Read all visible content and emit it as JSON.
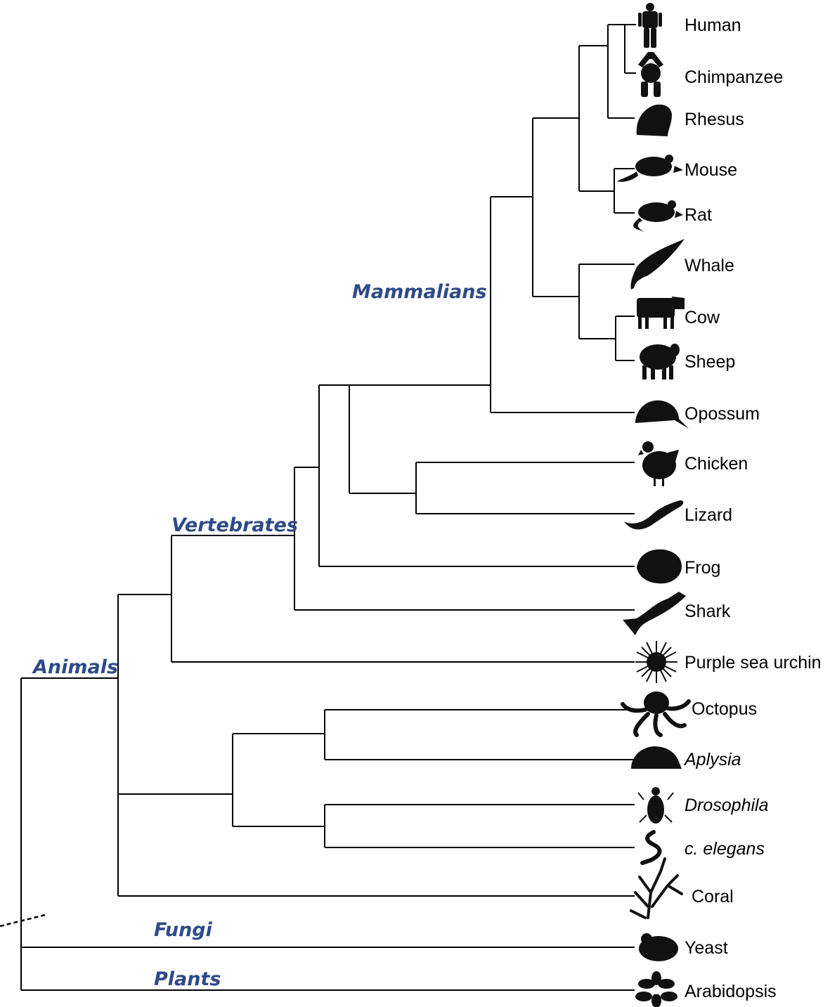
{
  "clades": {
    "mammalians": "Mammalians",
    "vertebrates": "Vertebrates",
    "animals": "Animals",
    "fungi": "Fungi",
    "plants": "Plants"
  },
  "taxa": {
    "human": "Human",
    "chimpanzee": "Chimpanzee",
    "rhesus": "Rhesus",
    "mouse": "Mouse",
    "rat": "Rat",
    "whale": "Whale",
    "cow": "Cow",
    "sheep": "Sheep",
    "opossum": "Opossum",
    "chicken": "Chicken",
    "lizard": "Lizard",
    "frog": "Frog",
    "shark": "Shark",
    "sea_urchin": "Purple sea urchin",
    "octopus": "Octopus",
    "aplysia": "Aplysia",
    "drosophila": "Drosophila",
    "c_elegans": "c. elegans",
    "coral": "Coral",
    "yeast": "Yeast",
    "arabidopsis": "Arabidopsis"
  }
}
